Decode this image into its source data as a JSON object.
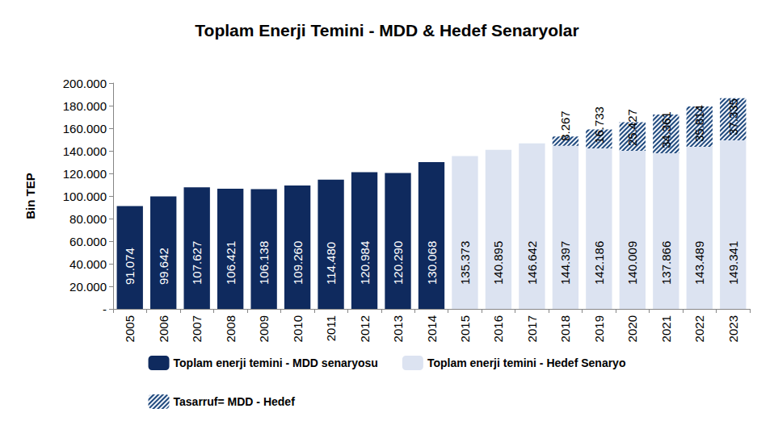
{
  "chart_data": {
    "type": "bar",
    "title": "Toplam Enerji Temini - MDD & Hedef Senaryolar",
    "y_label": "Bin TEP",
    "categories": [
      "2005",
      "2006",
      "2007",
      "2008",
      "2009",
      "2010",
      "2011",
      "2012",
      "2013",
      "2014",
      "2015",
      "2016",
      "2017",
      "2018",
      "2019",
      "2020",
      "2021",
      "2022",
      "2023"
    ],
    "series": [
      {
        "name": "Toplam enerji temini - MDD senaryosu",
        "color": "#0f2a5e",
        "values": [
          91074,
          99642,
          107627,
          106421,
          106138,
          109260,
          114480,
          120984,
          120290,
          130068,
          null,
          null,
          null,
          null,
          null,
          null,
          null,
          null,
          null
        ],
        "value_labels": [
          "91.074",
          "99.642",
          "107.627",
          "106.421",
          "106.138",
          "109.260",
          "114.480",
          "120.984",
          "120.290",
          "130.068",
          null,
          null,
          null,
          null,
          null,
          null,
          null,
          null,
          null
        ]
      },
      {
        "name": "Toplam enerji temini - Hedef Senaryo",
        "color": "#dce3f1",
        "values": [
          null,
          null,
          null,
          null,
          null,
          null,
          null,
          null,
          null,
          null,
          135373,
          140895,
          146642,
          144397,
          142186,
          140009,
          137866,
          143489,
          149341
        ],
        "value_labels": [
          null,
          null,
          null,
          null,
          null,
          null,
          null,
          null,
          null,
          null,
          "135.373",
          "140.895",
          "146.642",
          "144.397",
          "142.186",
          "140.009",
          "137.866",
          "143.489",
          "149.341"
        ]
      },
      {
        "name": "Tasarruf= MDD - Hedef",
        "color": "#1f497d",
        "marker": "hatch",
        "values": [
          null,
          null,
          null,
          null,
          null,
          null,
          null,
          null,
          null,
          null,
          null,
          null,
          null,
          8267,
          16733,
          25427,
          34361,
          35814,
          37335
        ],
        "value_labels": [
          null,
          null,
          null,
          null,
          null,
          null,
          null,
          null,
          null,
          null,
          null,
          null,
          null,
          "8.267",
          "16.733",
          "25.427",
          "34.361",
          "35.814",
          "37.335"
        ]
      }
    ],
    "ylim": [
      0,
      200000
    ],
    "yticks": [
      {
        "value": 0,
        "label": "-"
      },
      {
        "value": 20000,
        "label": "20.000"
      },
      {
        "value": 40000,
        "label": "40.000"
      },
      {
        "value": 60000,
        "label": "60.000"
      },
      {
        "value": 80000,
        "label": "80.000"
      },
      {
        "value": 100000,
        "label": "100.000"
      },
      {
        "value": 120000,
        "label": "120.000"
      },
      {
        "value": 140000,
        "label": "140.000"
      },
      {
        "value": 160000,
        "label": "160.000"
      },
      {
        "value": 180000,
        "label": "180.000"
      },
      {
        "value": 200000,
        "label": "200.000"
      }
    ],
    "stacked": true,
    "data_labels": true,
    "grid": false,
    "legend": "bottom"
  }
}
